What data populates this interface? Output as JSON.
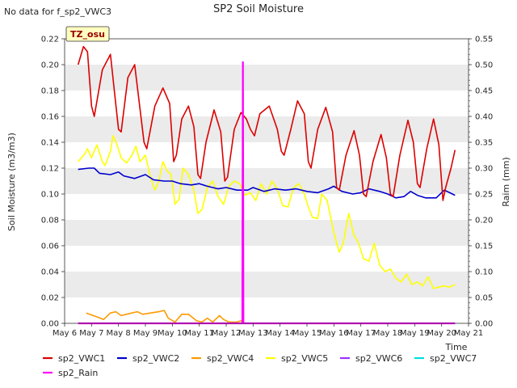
{
  "chart_data": {
    "type": "line",
    "title": "SP2 Soil Moisture",
    "note": "No data for f_sp2_VWC3",
    "badge": "TZ_osu",
    "xlabel": "Time",
    "ylabel": "Soil Moisture (m3/m3)",
    "y2label": "Raim (mm)",
    "xlim": [
      6,
      21
    ],
    "ylim": [
      0,
      0.22
    ],
    "y2lim": [
      0,
      0.55
    ],
    "x_tick_labels": [
      "May 6",
      "May 7",
      "May 8",
      "May 9",
      "May 10",
      "May 11",
      "May 12",
      "May 13",
      "May 14",
      "May 15",
      "May 16",
      "May 17",
      "May 18",
      "May 19",
      "May 20",
      "May 21"
    ],
    "y_tick_labels": [
      "0.00",
      "0.02",
      "0.04",
      "0.06",
      "0.08",
      "0.10",
      "0.12",
      "0.14",
      "0.16",
      "0.18",
      "0.20",
      "0.22"
    ],
    "y2_tick_labels": [
      "0.00",
      "0.05",
      "0.10",
      "0.15",
      "0.20",
      "0.25",
      "0.30",
      "0.35",
      "0.40",
      "0.45",
      "0.50",
      "0.55"
    ],
    "grid": "horizontal bands",
    "legend": "bottom",
    "series": [
      {
        "name": "sp2_VWC1",
        "color": "#dd0000",
        "axis": "left",
        "points": [
          [
            6.5,
            0.2
          ],
          [
            6.7,
            0.214
          ],
          [
            6.85,
            0.21
          ],
          [
            7.0,
            0.168
          ],
          [
            7.1,
            0.16
          ],
          [
            7.4,
            0.196
          ],
          [
            7.7,
            0.208
          ],
          [
            8.0,
            0.15
          ],
          [
            8.1,
            0.148
          ],
          [
            8.35,
            0.19
          ],
          [
            8.6,
            0.2
          ],
          [
            8.95,
            0.14
          ],
          [
            9.05,
            0.135
          ],
          [
            9.35,
            0.168
          ],
          [
            9.65,
            0.182
          ],
          [
            9.9,
            0.17
          ],
          [
            10.05,
            0.125
          ],
          [
            10.15,
            0.13
          ],
          [
            10.35,
            0.158
          ],
          [
            10.6,
            0.168
          ],
          [
            10.8,
            0.152
          ],
          [
            10.95,
            0.115
          ],
          [
            11.05,
            0.112
          ],
          [
            11.25,
            0.14
          ],
          [
            11.55,
            0.165
          ],
          [
            11.8,
            0.148
          ],
          [
            11.95,
            0.11
          ],
          [
            12.05,
            0.113
          ],
          [
            12.3,
            0.15
          ],
          [
            12.55,
            0.163
          ],
          [
            12.75,
            0.158
          ],
          [
            12.9,
            0.15
          ],
          [
            13.05,
            0.145
          ],
          [
            13.25,
            0.162
          ],
          [
            13.6,
            0.168
          ],
          [
            13.9,
            0.15
          ],
          [
            14.05,
            0.133
          ],
          [
            14.15,
            0.13
          ],
          [
            14.4,
            0.15
          ],
          [
            14.65,
            0.172
          ],
          [
            14.9,
            0.162
          ],
          [
            15.05,
            0.125
          ],
          [
            15.15,
            0.12
          ],
          [
            15.4,
            0.15
          ],
          [
            15.7,
            0.167
          ],
          [
            15.95,
            0.148
          ],
          [
            16.1,
            0.105
          ],
          [
            16.2,
            0.103
          ],
          [
            16.45,
            0.13
          ],
          [
            16.75,
            0.149
          ],
          [
            16.95,
            0.13
          ],
          [
            17.1,
            0.1
          ],
          [
            17.2,
            0.098
          ],
          [
            17.45,
            0.125
          ],
          [
            17.75,
            0.146
          ],
          [
            17.95,
            0.128
          ],
          [
            18.1,
            0.1
          ],
          [
            18.2,
            0.098
          ],
          [
            18.45,
            0.13
          ],
          [
            18.75,
            0.157
          ],
          [
            18.95,
            0.14
          ],
          [
            19.1,
            0.108
          ],
          [
            19.2,
            0.105
          ],
          [
            19.45,
            0.135
          ],
          [
            19.7,
            0.158
          ],
          [
            19.9,
            0.138
          ],
          [
            20.05,
            0.095
          ],
          [
            20.15,
            0.105
          ],
          [
            20.35,
            0.12
          ],
          [
            20.5,
            0.134
          ]
        ]
      },
      {
        "name": "sp2_VWC2",
        "color": "#0000cc",
        "axis": "left",
        "points": [
          [
            6.5,
            0.119
          ],
          [
            6.9,
            0.12
          ],
          [
            7.1,
            0.12
          ],
          [
            7.3,
            0.116
          ],
          [
            7.7,
            0.115
          ],
          [
            8.0,
            0.117
          ],
          [
            8.2,
            0.114
          ],
          [
            8.6,
            0.112
          ],
          [
            9.0,
            0.115
          ],
          [
            9.3,
            0.111
          ],
          [
            9.7,
            0.11
          ],
          [
            10.0,
            0.11
          ],
          [
            10.3,
            0.108
          ],
          [
            10.7,
            0.107
          ],
          [
            11.0,
            0.108
          ],
          [
            11.3,
            0.106
          ],
          [
            11.7,
            0.104
          ],
          [
            12.0,
            0.105
          ],
          [
            12.4,
            0.103
          ],
          [
            12.8,
            0.103
          ],
          [
            13.0,
            0.105
          ],
          [
            13.4,
            0.102
          ],
          [
            13.8,
            0.104
          ],
          [
            14.2,
            0.103
          ],
          [
            14.6,
            0.104
          ],
          [
            15.0,
            0.102
          ],
          [
            15.4,
            0.101
          ],
          [
            15.8,
            0.104
          ],
          [
            16.0,
            0.106
          ],
          [
            16.3,
            0.102
          ],
          [
            16.7,
            0.1
          ],
          [
            17.0,
            0.101
          ],
          [
            17.3,
            0.104
          ],
          [
            17.7,
            0.102
          ],
          [
            18.0,
            0.1
          ],
          [
            18.3,
            0.097
          ],
          [
            18.6,
            0.098
          ],
          [
            18.85,
            0.102
          ],
          [
            19.1,
            0.099
          ],
          [
            19.4,
            0.097
          ],
          [
            19.8,
            0.097
          ],
          [
            20.1,
            0.103
          ],
          [
            20.3,
            0.101
          ],
          [
            20.5,
            0.099
          ]
        ]
      },
      {
        "name": "sp2_VWC4",
        "color": "#ff9900",
        "axis": "left",
        "points": [
          [
            6.8,
            0.008
          ],
          [
            7.2,
            0.005
          ],
          [
            7.45,
            0.003
          ],
          [
            7.7,
            0.008
          ],
          [
            7.9,
            0.009
          ],
          [
            8.1,
            0.006
          ],
          [
            8.5,
            0.008
          ],
          [
            8.7,
            0.009
          ],
          [
            8.9,
            0.007
          ],
          [
            9.2,
            0.008
          ],
          [
            9.5,
            0.009
          ],
          [
            9.7,
            0.01
          ],
          [
            9.85,
            0.004
          ],
          [
            10.1,
            0.001
          ],
          [
            10.35,
            0.007
          ],
          [
            10.6,
            0.007
          ],
          [
            10.9,
            0.002
          ],
          [
            11.1,
            0.001
          ],
          [
            11.3,
            0.004
          ],
          [
            11.5,
            0.001
          ],
          [
            11.75,
            0.006
          ],
          [
            11.9,
            0.003
          ],
          [
            12.1,
            0.001
          ],
          [
            12.4,
            0.001
          ],
          [
            12.55,
            0.002
          ],
          [
            12.65,
            0.001
          ]
        ]
      },
      {
        "name": "sp2_VWC5",
        "color": "#ffff00",
        "axis": "left",
        "points": [
          [
            6.5,
            0.125
          ],
          [
            6.75,
            0.131
          ],
          [
            6.85,
            0.135
          ],
          [
            7.0,
            0.128
          ],
          [
            7.2,
            0.138
          ],
          [
            7.4,
            0.125
          ],
          [
            7.5,
            0.122
          ],
          [
            7.7,
            0.133
          ],
          [
            7.8,
            0.145
          ],
          [
            7.95,
            0.138
          ],
          [
            8.1,
            0.128
          ],
          [
            8.3,
            0.124
          ],
          [
            8.5,
            0.13
          ],
          [
            8.65,
            0.137
          ],
          [
            8.8,
            0.125
          ],
          [
            9.0,
            0.13
          ],
          [
            9.2,
            0.112
          ],
          [
            9.35,
            0.103
          ],
          [
            9.5,
            0.11
          ],
          [
            9.65,
            0.125
          ],
          [
            9.8,
            0.118
          ],
          [
            9.95,
            0.115
          ],
          [
            10.1,
            0.092
          ],
          [
            10.25,
            0.096
          ],
          [
            10.4,
            0.12
          ],
          [
            10.6,
            0.115
          ],
          [
            10.8,
            0.103
          ],
          [
            10.95,
            0.085
          ],
          [
            11.1,
            0.088
          ],
          [
            11.3,
            0.105
          ],
          [
            11.5,
            0.11
          ],
          [
            11.7,
            0.098
          ],
          [
            11.9,
            0.092
          ],
          [
            12.1,
            0.106
          ],
          [
            12.3,
            0.11
          ],
          [
            12.5,
            0.108
          ],
          [
            12.7,
            0.099
          ],
          [
            12.9,
            0.101
          ],
          [
            13.1,
            0.095
          ],
          [
            13.3,
            0.108
          ],
          [
            13.5,
            0.1
          ],
          [
            13.7,
            0.11
          ],
          [
            13.9,
            0.104
          ],
          [
            14.1,
            0.091
          ],
          [
            14.3,
            0.09
          ],
          [
            14.5,
            0.105
          ],
          [
            14.7,
            0.108
          ],
          [
            14.9,
            0.1
          ],
          [
            15.05,
            0.09
          ],
          [
            15.2,
            0.082
          ],
          [
            15.4,
            0.081
          ],
          [
            15.55,
            0.1
          ],
          [
            15.75,
            0.095
          ],
          [
            15.85,
            0.085
          ],
          [
            16.0,
            0.07
          ],
          [
            16.2,
            0.055
          ],
          [
            16.35,
            0.062
          ],
          [
            16.55,
            0.085
          ],
          [
            16.75,
            0.068
          ],
          [
            16.9,
            0.063
          ],
          [
            17.1,
            0.05
          ],
          [
            17.3,
            0.048
          ],
          [
            17.5,
            0.062
          ],
          [
            17.7,
            0.045
          ],
          [
            17.9,
            0.04
          ],
          [
            18.1,
            0.042
          ],
          [
            18.3,
            0.035
          ],
          [
            18.5,
            0.032
          ],
          [
            18.7,
            0.038
          ],
          [
            18.9,
            0.03
          ],
          [
            19.1,
            0.032
          ],
          [
            19.3,
            0.029
          ],
          [
            19.5,
            0.036
          ],
          [
            19.7,
            0.027
          ],
          [
            19.9,
            0.028
          ],
          [
            20.1,
            0.029
          ],
          [
            20.3,
            0.028
          ],
          [
            20.5,
            0.03
          ]
        ]
      },
      {
        "name": "sp2_VWC6",
        "color": "#9933ff",
        "axis": "left",
        "points": [
          [
            12.6,
            0.0
          ],
          [
            12.62,
            0.0
          ]
        ]
      },
      {
        "name": "sp2_VWC7",
        "color": "#00dddd",
        "axis": "left",
        "points": [
          [
            6.5,
            0.0
          ],
          [
            20.5,
            0.0
          ]
        ]
      },
      {
        "name": "sp2_Rain",
        "color": "#ff00ff",
        "axis": "right",
        "points": [
          [
            6.5,
            0.0
          ],
          [
            12.6,
            0.0
          ],
          [
            12.62,
            0.505
          ],
          [
            12.64,
            0.0
          ],
          [
            20.5,
            0.0
          ]
        ]
      }
    ]
  }
}
